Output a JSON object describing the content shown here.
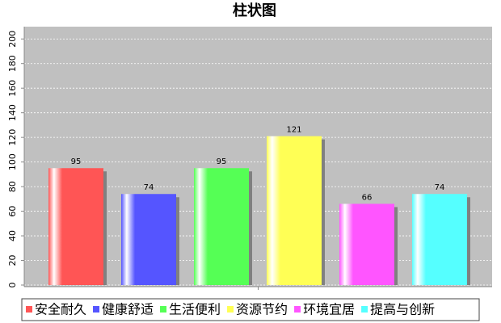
{
  "chart_data": {
    "type": "bar",
    "title": "柱状图",
    "categories": [
      null
    ],
    "series": [
      {
        "name": "安全耐久",
        "color": "#ff5555",
        "values": [
          95
        ]
      },
      {
        "name": "健康舒适",
        "color": "#5555ff",
        "values": [
          74
        ]
      },
      {
        "name": "生活便利",
        "color": "#55ff55",
        "values": [
          95
        ]
      },
      {
        "name": "资源节约",
        "color": "#ffff55",
        "values": [
          121
        ]
      },
      {
        "name": "环境宜居",
        "color": "#ff55ff",
        "values": [
          66
        ]
      },
      {
        "name": "提高与创新",
        "color": "#55ffff",
        "values": [
          74
        ]
      }
    ],
    "ylim": [
      0,
      210
    ],
    "yticks": [
      0,
      20,
      40,
      60,
      80,
      100,
      120,
      140,
      160,
      180,
      200
    ],
    "grid": true,
    "legend": "bottom"
  }
}
